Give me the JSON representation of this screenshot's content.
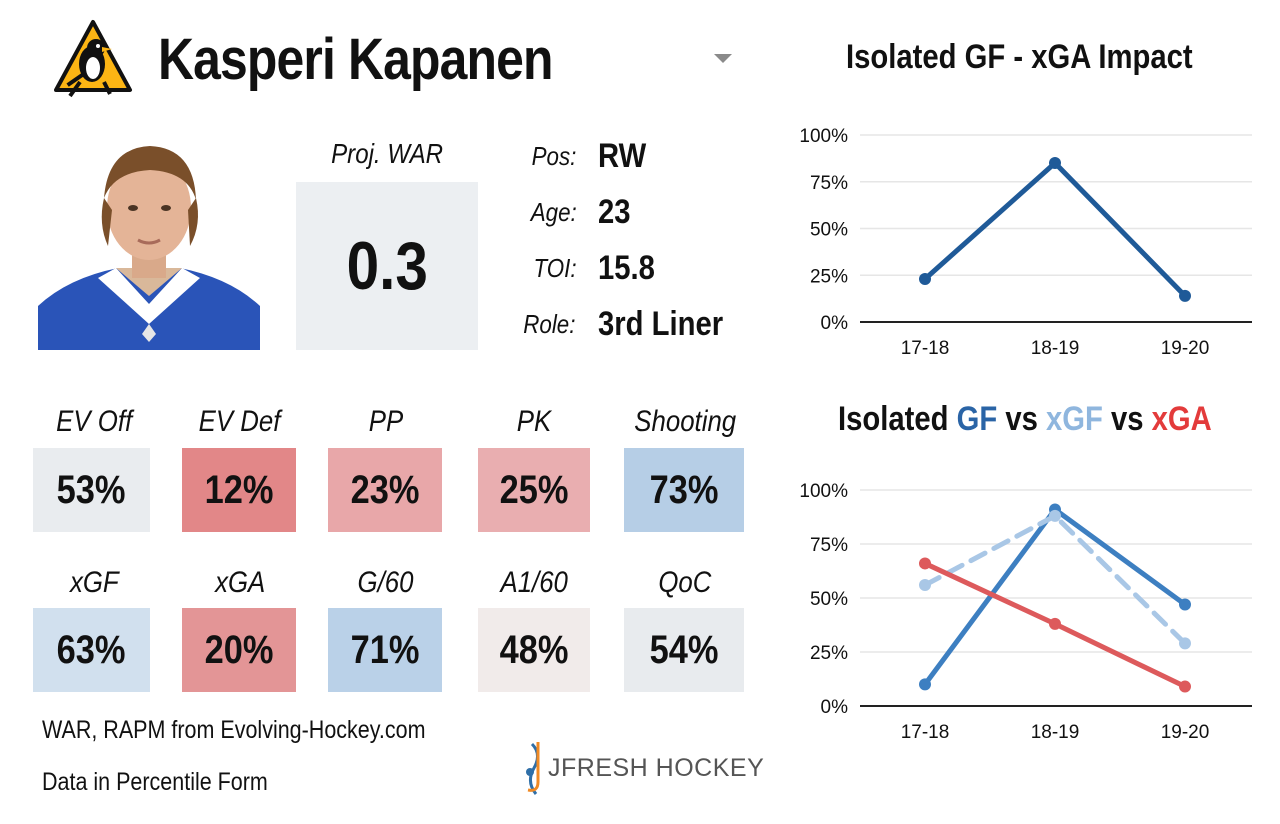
{
  "player": {
    "name": "Kasperi Kapanen",
    "proj_war_label": "Proj. WAR",
    "proj_war_value": "0.3",
    "info": [
      {
        "label": "Pos:",
        "value": "RW"
      },
      {
        "label": "Age:",
        "value": "23"
      },
      {
        "label": "TOI:",
        "value": "15.8"
      },
      {
        "label": "Role:",
        "value": "3rd Liner"
      }
    ]
  },
  "metrics": [
    {
      "label": "EV Off",
      "value": "53%",
      "color": "#e9ecef"
    },
    {
      "label": "EV Def",
      "value": "12%",
      "color": "#e28788"
    },
    {
      "label": "PP",
      "value": "23%",
      "color": "#e8a7a9"
    },
    {
      "label": "PK",
      "value": "25%",
      "color": "#e9aeb0"
    },
    {
      "label": "Shooting",
      "value": "73%",
      "color": "#b6cee6"
    },
    {
      "label": "xGF",
      "value": "63%",
      "color": "#d1e0ee"
    },
    {
      "label": "xGA",
      "value": "20%",
      "color": "#e39596"
    },
    {
      "label": "G/60",
      "value": "71%",
      "color": "#bad1e8"
    },
    {
      "label": "A1/60",
      "value": "48%",
      "color": "#f1ebea"
    },
    {
      "label": "QoC",
      "value": "54%",
      "color": "#e8ebee"
    }
  ],
  "footer": {
    "source": "WAR, RAPM from  Evolving-Hockey.com",
    "note": "Data in Percentile Form",
    "brand": "JFRESH HOCKEY"
  },
  "colors": {
    "dark_blue": "#1f5a98",
    "mid_blue": "#3d7fc1",
    "light_blue": "#a9c7e6",
    "red": "#dd5a5c",
    "team_gold": "#fcb514"
  },
  "icons": {
    "team_logo": "penguins-logo-icon",
    "caret": "chevron-down-icon",
    "brand_logo": "jfresh-hockey-logo-icon"
  },
  "chart_data": [
    {
      "type": "line",
      "title": "Isolated GF - xGA Impact",
      "categories": [
        "17-18",
        "18-19",
        "19-20"
      ],
      "series": [
        {
          "values": [
            23,
            85,
            14
          ],
          "color": "#1f5a98",
          "style": "solid"
        }
      ],
      "yticks": [
        "0%",
        "25%",
        "50%",
        "75%",
        "100%"
      ],
      "ylim": [
        0,
        100
      ],
      "grid": true
    },
    {
      "type": "line",
      "title_parts": [
        "Isolated ",
        "GF",
        " vs ",
        "xGF",
        " vs ",
        "xGA"
      ],
      "categories": [
        "17-18",
        "18-19",
        "19-20"
      ],
      "series": [
        {
          "name": "GF",
          "values": [
            10,
            91,
            47
          ],
          "color": "#3d7fc1",
          "style": "solid"
        },
        {
          "name": "xGF",
          "values": [
            56,
            88,
            29
          ],
          "color": "#a9c7e6",
          "style": "dashed"
        },
        {
          "name": "xGA",
          "values": [
            66,
            38,
            9
          ],
          "color": "#dd5a5c",
          "style": "solid"
        }
      ],
      "yticks": [
        "0%",
        "25%",
        "50%",
        "75%",
        "100%"
      ],
      "ylim": [
        0,
        100
      ],
      "grid": true
    }
  ]
}
